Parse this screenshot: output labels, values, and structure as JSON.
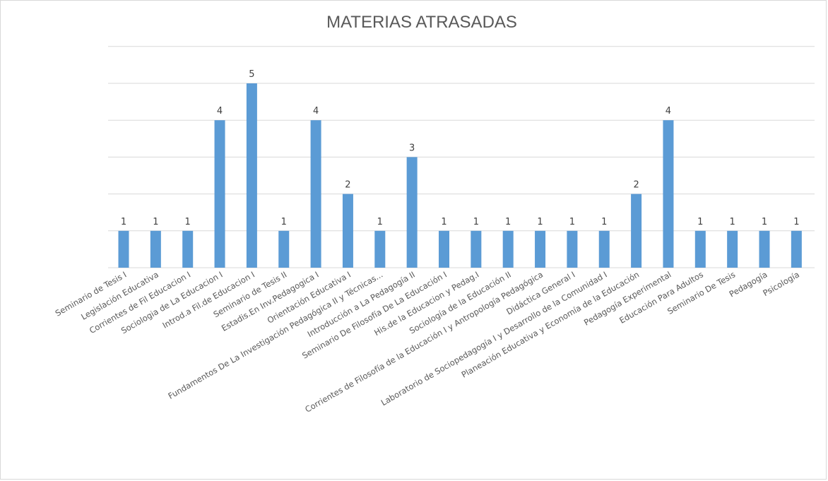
{
  "chart_data": {
    "type": "bar",
    "title": "MATERIAS ATRASADAS",
    "xlabel": "",
    "ylabel": "",
    "ylim": [
      0,
      6
    ],
    "grid": true,
    "legend": "none",
    "bar_color": "#5b9bd5",
    "categories": [
      "Seminario de Tesis I",
      "Legislación Educativa",
      "Corrientes de Fil Educacion I",
      "Sociologia de La Educacion I",
      "Introd.a Fil.de Educacion I",
      "Seminario de Tesis II",
      "Estadis.En Inv.Pedagogica I",
      "Orientación Educativa I",
      "Fundamentos De La Investigación Pedagógica II y Técnicas...",
      "Introducción a La Pedagogía II",
      "Seminario De Filosofía De La Educación I",
      "His.de la Educacion y Pedag.I",
      "Sociología de la Educación II",
      "Corrientes de Filosofía de la Educación I y Antropología Pedagógica",
      "Didáctica General I",
      "Laboratorio de Sociopedagogía I y Desarrollo de la Comunidad I",
      "Planeación Educativa y Economía de la Educación",
      "Pedagogía Experimental",
      "Educación Para Adultos",
      "Seminario De Tesis",
      "Pedagogía",
      "Psicología"
    ],
    "values": [
      1,
      1,
      1,
      4,
      5,
      1,
      4,
      2,
      1,
      3,
      1,
      1,
      1,
      1,
      1,
      1,
      2,
      4,
      1,
      1,
      1,
      1
    ]
  }
}
